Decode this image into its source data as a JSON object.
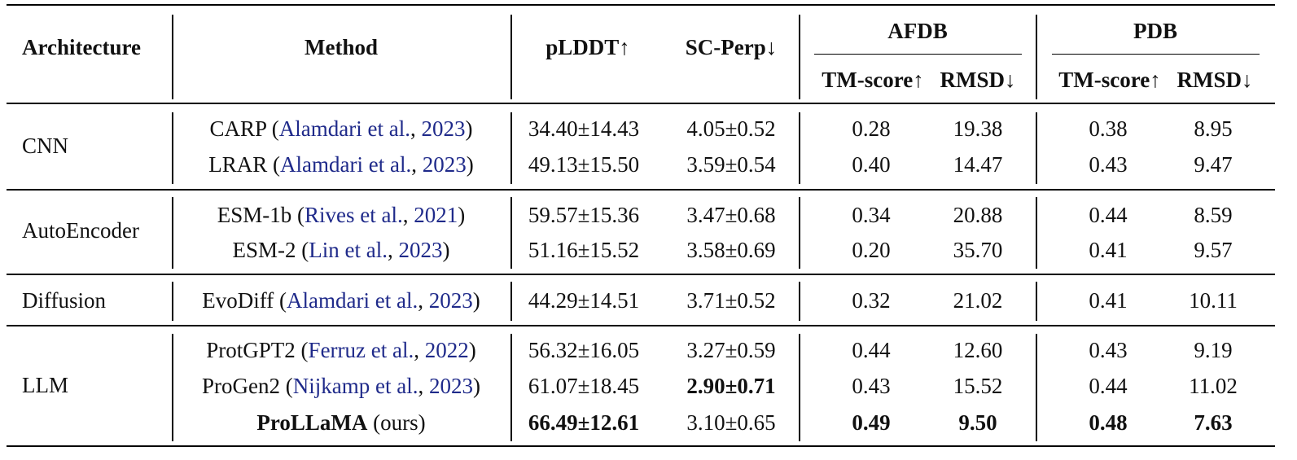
{
  "headers": {
    "architecture": "Architecture",
    "method": "Method",
    "plddt": "pLDDT↑",
    "sc_perp": "SC-Perp↓",
    "afdb": "AFDB",
    "pdb": "PDB",
    "tm_score": "TM-score↑",
    "rmsd": "RMSD↓"
  },
  "groups": [
    {
      "name": "CNN"
    },
    {
      "name": "AutoEncoder"
    },
    {
      "name": "Diffusion"
    },
    {
      "name": "LLM"
    }
  ],
  "rows": [
    {
      "method": "CARP",
      "cite_open": "(",
      "cite_authors": "Alamdari et al.",
      "cite_sep": ", ",
      "cite_year": "2023",
      "cite_close": ")",
      "plddt": "34.40±14.43",
      "sc_perp": "4.05±0.52",
      "afdb_tm": "0.28",
      "afdb_rmsd": "19.38",
      "pdb_tm": "0.38",
      "pdb_rmsd": "8.95"
    },
    {
      "method": "LRAR",
      "cite_open": "(",
      "cite_authors": "Alamdari et al.",
      "cite_sep": ", ",
      "cite_year": "2023",
      "cite_close": ")",
      "plddt": "49.13±15.50",
      "sc_perp": "3.59±0.54",
      "afdb_tm": "0.40",
      "afdb_rmsd": "14.47",
      "pdb_tm": "0.43",
      "pdb_rmsd": "9.47"
    },
    {
      "method": "ESM-1b",
      "cite_open": "(",
      "cite_authors": "Rives et al.",
      "cite_sep": ", ",
      "cite_year": "2021",
      "cite_close": ")",
      "plddt": "59.57±15.36",
      "sc_perp": "3.47±0.68",
      "afdb_tm": "0.34",
      "afdb_rmsd": "20.88",
      "pdb_tm": "0.44",
      "pdb_rmsd": "8.59"
    },
    {
      "method": "ESM-2",
      "cite_open": "(",
      "cite_authors": "Lin et al.",
      "cite_sep": ", ",
      "cite_year": "2023",
      "cite_close": ")",
      "plddt": "51.16±15.52",
      "sc_perp": "3.58±0.69",
      "afdb_tm": "0.20",
      "afdb_rmsd": "35.70",
      "pdb_tm": "0.41",
      "pdb_rmsd": "9.57"
    },
    {
      "method": "EvoDiff",
      "cite_open": "(",
      "cite_authors": "Alamdari et al.",
      "cite_sep": ", ",
      "cite_year": "2023",
      "cite_close": ")",
      "plddt": "44.29±14.51",
      "sc_perp": "3.71±0.52",
      "afdb_tm": "0.32",
      "afdb_rmsd": "21.02",
      "pdb_tm": "0.41",
      "pdb_rmsd": "10.11"
    },
    {
      "method": "ProtGPT2",
      "cite_open": "(",
      "cite_authors": "Ferruz et al.",
      "cite_sep": ", ",
      "cite_year": "2022",
      "cite_close": ")",
      "plddt": "56.32±16.05",
      "sc_perp": "3.27±0.59",
      "afdb_tm": "0.44",
      "afdb_rmsd": "12.60",
      "pdb_tm": "0.43",
      "pdb_rmsd": "9.19"
    },
    {
      "method": "ProGen2",
      "cite_open": "(",
      "cite_authors": "Nijkamp et al.",
      "cite_sep": ", ",
      "cite_year": "2023",
      "cite_close": ")",
      "plddt": "61.07±18.45",
      "sc_perp": "2.90±0.71",
      "afdb_tm": "0.43",
      "afdb_rmsd": "15.52",
      "pdb_tm": "0.44",
      "pdb_rmsd": "11.02"
    },
    {
      "method": "ProLLaMA",
      "note": "(ours)",
      "plddt": "66.49±12.61",
      "sc_perp": "3.10±0.65",
      "afdb_tm": "0.49",
      "afdb_rmsd": "9.50",
      "pdb_tm": "0.48",
      "pdb_rmsd": "7.63"
    }
  ]
}
